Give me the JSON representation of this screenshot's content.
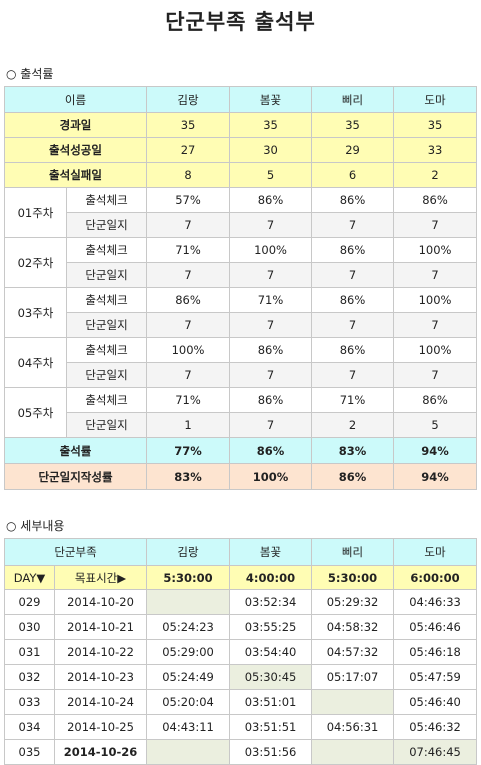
{
  "title": "단군부족 출석부",
  "sections": {
    "attendance_rate": "출석률",
    "details": "세부내용"
  },
  "table1": {
    "header": [
      "이름",
      "김랑",
      "봄꽃",
      "삐리",
      "도마"
    ],
    "days_elapsed": {
      "label": "경과일",
      "values": [
        "35",
        "35",
        "35",
        "35"
      ]
    },
    "success_days": {
      "label": "출석성공일",
      "values": [
        "27",
        "30",
        "29",
        "33"
      ]
    },
    "fail_days": {
      "label": "출석실패일",
      "values": [
        "8",
        "5",
        "6",
        "2"
      ]
    },
    "weeks": [
      {
        "label": "01주차",
        "check_label": "출석체크",
        "check": [
          "57%",
          "86%",
          "86%",
          "86%"
        ],
        "journal_label": "단군일지",
        "journal": [
          "7",
          "7",
          "7",
          "7"
        ]
      },
      {
        "label": "02주차",
        "check_label": "출석체크",
        "check": [
          "71%",
          "100%",
          "86%",
          "100%"
        ],
        "journal_label": "단군일지",
        "journal": [
          "7",
          "7",
          "7",
          "7"
        ]
      },
      {
        "label": "03주차",
        "check_label": "출석체크",
        "check": [
          "86%",
          "71%",
          "86%",
          "100%"
        ],
        "journal_label": "단군일지",
        "journal": [
          "7",
          "7",
          "7",
          "7"
        ]
      },
      {
        "label": "04주차",
        "check_label": "출석체크",
        "check": [
          "100%",
          "86%",
          "86%",
          "100%"
        ],
        "journal_label": "단군일지",
        "journal": [
          "7",
          "7",
          "7",
          "7"
        ]
      },
      {
        "label": "05주차",
        "check_label": "출석체크",
        "check": [
          "71%",
          "86%",
          "71%",
          "86%"
        ],
        "journal_label": "단군일지",
        "journal": [
          "1",
          "7",
          "2",
          "5"
        ]
      }
    ],
    "attendance_rate": {
      "label": "출석률",
      "values": [
        "77%",
        "86%",
        "83%",
        "94%"
      ]
    },
    "journal_rate": {
      "label": "단군일지작성률",
      "values": [
        "83%",
        "100%",
        "86%",
        "94%"
      ]
    }
  },
  "table2": {
    "header": [
      "단군부족",
      "김랑",
      "봄꽃",
      "삐리",
      "도마"
    ],
    "sub_header": {
      "day": "DAY▼",
      "target": "목표시간▶",
      "targets": [
        "5:30:00",
        "4:00:00",
        "5:30:00",
        "6:00:00"
      ]
    },
    "rows": [
      {
        "day": "029",
        "date": "2014-10-20",
        "times": [
          "",
          "03:52:34",
          "05:29:32",
          "04:46:33"
        ]
      },
      {
        "day": "030",
        "date": "2014-10-21",
        "times": [
          "05:24:23",
          "03:55:25",
          "04:58:32",
          "05:46:46"
        ]
      },
      {
        "day": "031",
        "date": "2014-10-22",
        "times": [
          "05:29:00",
          "03:54:40",
          "04:57:32",
          "05:46:18"
        ]
      },
      {
        "day": "032",
        "date": "2014-10-23",
        "times": [
          "05:24:49",
          "05:30:45",
          "05:17:07",
          "05:47:59"
        ]
      },
      {
        "day": "033",
        "date": "2014-10-24",
        "times": [
          "05:20:04",
          "03:51:01",
          "",
          "05:46:40"
        ]
      },
      {
        "day": "034",
        "date": "2014-10-25",
        "times": [
          "04:43:11",
          "03:51:51",
          "04:56:31",
          "05:46:32"
        ]
      },
      {
        "day": "035",
        "date": "2014-10-26",
        "times": [
          "",
          "03:51:56",
          "",
          "07:46:45"
        ]
      }
    ]
  }
}
